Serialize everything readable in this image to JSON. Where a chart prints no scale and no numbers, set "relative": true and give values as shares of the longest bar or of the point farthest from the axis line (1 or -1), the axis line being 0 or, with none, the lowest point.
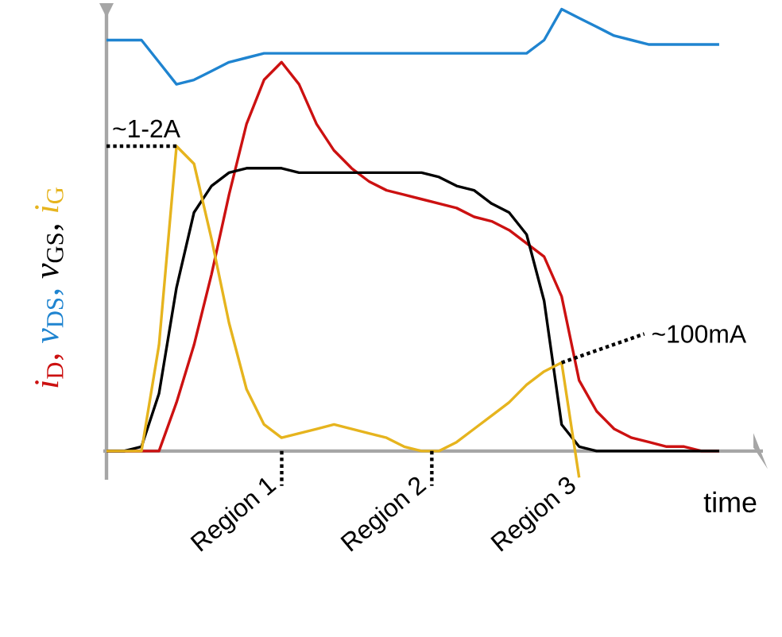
{
  "chart_data": {
    "type": "line",
    "relative": true,
    "xlabel": "time",
    "marker": "none",
    "line_style": "solid",
    "categories": [
      null,
      null,
      null,
      null,
      null,
      null,
      null,
      null,
      null,
      null,
      null,
      null,
      null,
      null,
      null,
      null,
      null,
      null,
      null,
      null,
      null,
      null,
      null,
      null,
      null,
      null,
      null,
      null,
      null,
      null,
      null,
      null,
      null,
      null,
      null,
      null
    ],
    "series": [
      {
        "name": "*i*$_{D}$,",
        "color": "#cc1111",
        "values": [
          0,
          0,
          0,
          0,
          0.11,
          0.24,
          0.4,
          0.58,
          0.74,
          0.84,
          0.88,
          0.83,
          0.74,
          0.68,
          0.64,
          0.61,
          0.59,
          0.58,
          0.57,
          0.56,
          0.55,
          0.53,
          0.52,
          0.5,
          0.47,
          0.44,
          0.35,
          0.16,
          0.09,
          0.05,
          0.03,
          0.02,
          0.01,
          0.01,
          0,
          0
        ]
      },
      {
        "name": "*v*$_{DS}$,",
        "color": "#1f84d0",
        "values": [
          0.93,
          0.93,
          0.93,
          0.88,
          0.83,
          0.84,
          0.86,
          0.88,
          0.89,
          0.9,
          0.9,
          0.9,
          0.9,
          0.9,
          0.9,
          0.9,
          0.9,
          0.9,
          0.9,
          0.9,
          0.9,
          0.9,
          0.9,
          0.9,
          0.9,
          0.93,
          1,
          0.98,
          0.96,
          0.94,
          0.93,
          0.92,
          0.92,
          0.92,
          0.92,
          0.92
        ]
      },
      {
        "name": "*v*$_{GS}$,",
        "color": "#000000",
        "values": [
          0,
          0,
          0.01,
          0.13,
          0.37,
          0.54,
          0.6,
          0.63,
          0.64,
          0.64,
          0.64,
          0.63,
          0.63,
          0.63,
          0.63,
          0.63,
          0.63,
          0.63,
          0.63,
          0.62,
          0.6,
          0.59,
          0.56,
          0.54,
          0.49,
          0.34,
          0.06,
          0.01,
          0,
          0,
          0,
          0,
          0,
          0,
          0,
          0
        ]
      },
      {
        "name": "*i*$_{G}$",
        "color": "#e6b41e",
        "values": [
          0,
          0,
          0,
          0.24,
          0.69,
          0.65,
          0.48,
          0.29,
          0.14,
          0.06,
          0.03,
          0.04,
          0.05,
          0.06,
          0.05,
          0.04,
          0.03,
          0.01,
          0,
          0,
          0.02,
          0.05,
          0.08,
          0.11,
          0.15,
          0.18,
          0.2,
          -0.06,
          null,
          null,
          null,
          null,
          null,
          null,
          null,
          null
        ]
      }
    ],
    "annotations": [
      "~1-2A",
      "~100mA",
      "Region 1",
      "Region 2",
      "Region 3"
    ]
  }
}
